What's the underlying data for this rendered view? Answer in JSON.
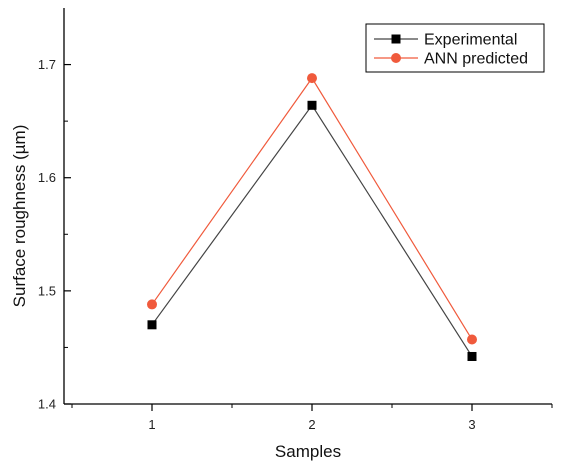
{
  "chart_data": {
    "type": "line",
    "title": "",
    "xlabel": "Samples",
    "ylabel": "Surface roughness (µm)",
    "x": [
      1,
      2,
      3
    ],
    "xticks": [
      "1",
      "2",
      "3"
    ],
    "xlim": [
      0.45,
      3.5
    ],
    "yticks": [
      "1.4",
      "1.5",
      "1.6",
      "1.7"
    ],
    "ylim": [
      1.4,
      1.75
    ],
    "grid": false,
    "legend_position": "top-right",
    "series": [
      {
        "name": "Experimental",
        "values": [
          1.47,
          1.664,
          1.442
        ],
        "color": "#000000",
        "marker": "square",
        "line_color": "#444444"
      },
      {
        "name": "ANN predicted",
        "values": [
          1.488,
          1.688,
          1.457
        ],
        "color": "#f05a3c",
        "marker": "circle",
        "line_color": "#f05a3c"
      }
    ]
  }
}
